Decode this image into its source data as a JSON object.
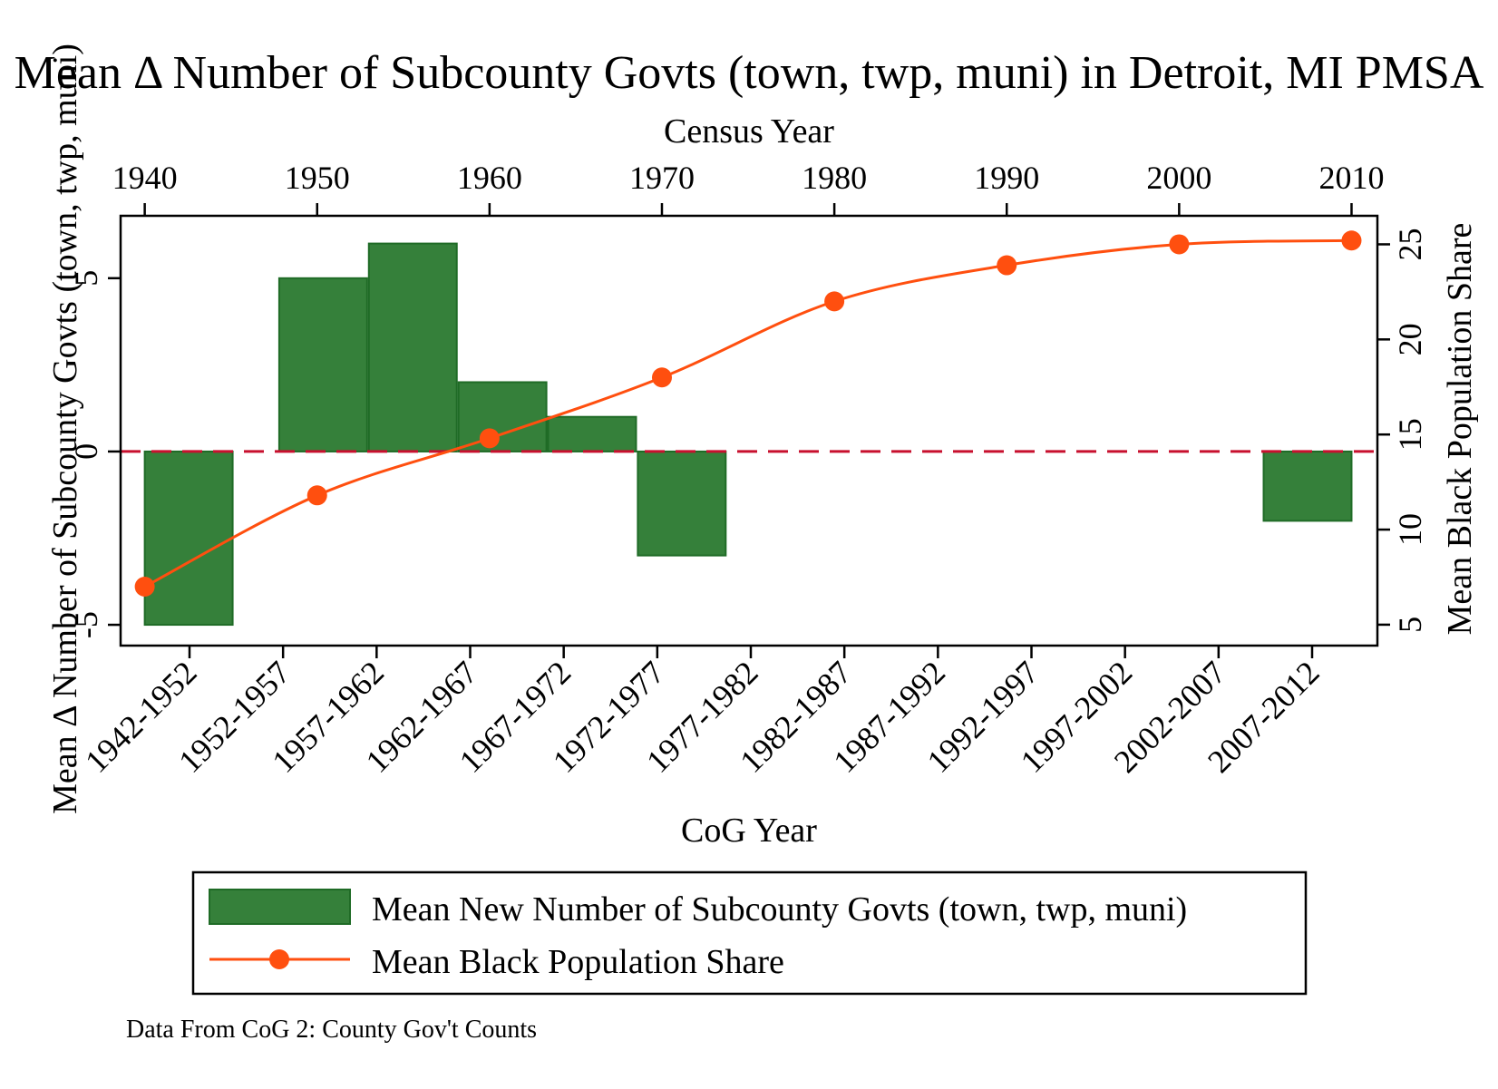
{
  "chart_data": {
    "type": "bar",
    "title": "Mean Δ Number of Subcounty Govts (town, twp, muni) in Detroit, MI PMSA",
    "xlabel": "CoG Year",
    "x2label": "Census Year",
    "ylabel": "Mean Δ Number of Subcounty Govts (town, twp, muni)",
    "y2label": "Mean Black Population Share",
    "categories": [
      "1942-1952",
      "1952-1957",
      "1957-1962",
      "1962-1967",
      "1967-1972",
      "1972-1977",
      "1977-1982",
      "1982-1987",
      "1987-1992",
      "1992-1997",
      "1997-2002",
      "2002-2007",
      "2007-2012"
    ],
    "ylim": [
      -5.6,
      6.8
    ],
    "yticks": [
      -5,
      0,
      5
    ],
    "y2lim": [
      3.9,
      26.5
    ],
    "y2ticks": [
      5,
      10,
      15,
      20,
      25
    ],
    "x2lim": [
      1938.6,
      2011.5
    ],
    "x2ticks": [
      1940,
      1950,
      1960,
      1970,
      1980,
      1990,
      2000,
      2010
    ],
    "series": [
      {
        "name": "Mean New Number of Subcounty Govts (town, twp, muni)",
        "type": "bar",
        "color": "#35803a",
        "bars": [
          {
            "x0": 1940.0,
            "x1": 1945.1,
            "value": -5.0
          },
          {
            "x0": 1947.8,
            "x1": 1952.9,
            "value": 5.0
          },
          {
            "x0": 1953.0,
            "x1": 1958.1,
            "value": 6.0
          },
          {
            "x0": 1958.2,
            "x1": 1963.3,
            "value": 2.0
          },
          {
            "x0": 1963.4,
            "x1": 1968.5,
            "value": 1.0
          },
          {
            "x0": 1968.6,
            "x1": 1973.7,
            "value": -3.0
          },
          {
            "x0": 2004.9,
            "x1": 2010.0,
            "value": -2.0
          }
        ]
      },
      {
        "name": "Mean Black Population Share",
        "type": "line",
        "color": "#ff4f0f",
        "x": [
          1940,
          1950,
          1960,
          1970,
          1980,
          1990,
          2000,
          2010
        ],
        "values": [
          7.0,
          11.8,
          14.8,
          18.0,
          22.0,
          23.9,
          25.0,
          25.2
        ]
      }
    ],
    "reference_line": {
      "y": 0,
      "color": "#c8102e",
      "style": "dashed"
    },
    "legend": {
      "placement": "bottom"
    },
    "note": "Data From CoG 2: County Gov't Counts"
  }
}
